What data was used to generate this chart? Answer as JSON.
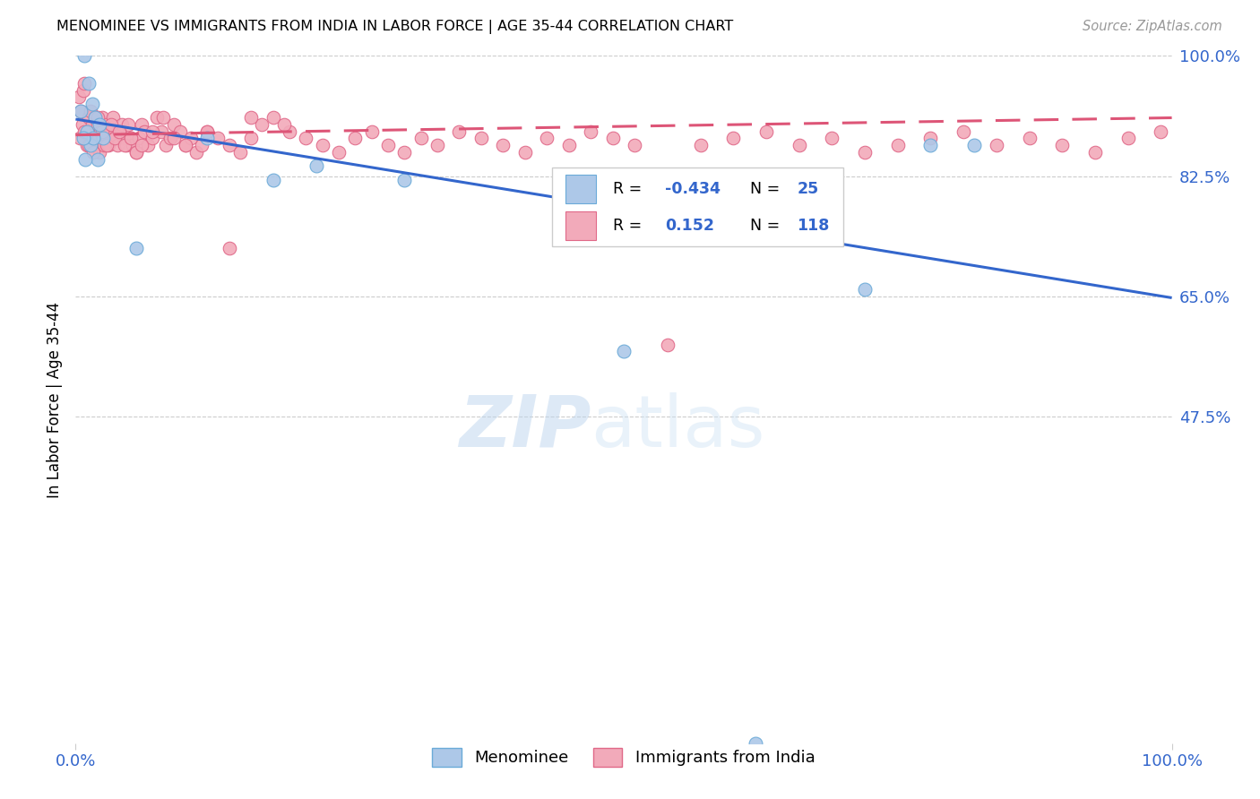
{
  "title": "MENOMINEE VS IMMIGRANTS FROM INDIA IN LABOR FORCE | AGE 35-44 CORRELATION CHART",
  "source": "Source: ZipAtlas.com",
  "ylabel": "In Labor Force | Age 35-44",
  "xlim": [
    0,
    1
  ],
  "ylim": [
    0,
    1
  ],
  "ytick_positions": [
    1.0,
    0.825,
    0.65,
    0.475
  ],
  "ytick_labels": [
    "100.0%",
    "82.5%",
    "65.0%",
    "47.5%"
  ],
  "xtick_positions": [
    0.0,
    1.0
  ],
  "xtick_labels": [
    "0.0%",
    "100.0%"
  ],
  "menominee_color": "#adc8e8",
  "india_color": "#f2aaba",
  "menominee_edge": "#6aaad8",
  "india_edge": "#e06888",
  "trend_blue": "#3366cc",
  "trend_pink": "#dd5577",
  "watermark_zip": "ZIP",
  "watermark_atlas": "atlas",
  "blue_line_x": [
    0.0,
    1.0
  ],
  "blue_line_y": [
    0.908,
    0.648
  ],
  "pink_line_x": [
    0.0,
    1.0
  ],
  "pink_line_y": [
    0.885,
    0.91
  ],
  "menominee_x": [
    0.008,
    0.012,
    0.015,
    0.018,
    0.01,
    0.022,
    0.025,
    0.014,
    0.016,
    0.02,
    0.005,
    0.007,
    0.009,
    0.055,
    0.12,
    0.18,
    0.22,
    0.62,
    0.68,
    0.72,
    0.78,
    0.82,
    0.5,
    0.62,
    0.3
  ],
  "menominee_y": [
    1.0,
    0.96,
    0.93,
    0.91,
    0.89,
    0.9,
    0.88,
    0.87,
    0.88,
    0.85,
    0.92,
    0.88,
    0.85,
    0.72,
    0.88,
    0.82,
    0.84,
    0.82,
    0.82,
    0.66,
    0.87,
    0.87,
    0.57,
    0.0,
    0.82
  ],
  "india_x": [
    0.003,
    0.005,
    0.006,
    0.007,
    0.008,
    0.009,
    0.01,
    0.011,
    0.012,
    0.013,
    0.014,
    0.015,
    0.016,
    0.017,
    0.018,
    0.019,
    0.02,
    0.021,
    0.022,
    0.023,
    0.024,
    0.025,
    0.026,
    0.027,
    0.028,
    0.029,
    0.03,
    0.032,
    0.034,
    0.036,
    0.038,
    0.04,
    0.042,
    0.044,
    0.046,
    0.048,
    0.05,
    0.052,
    0.055,
    0.058,
    0.06,
    0.063,
    0.066,
    0.07,
    0.074,
    0.078,
    0.082,
    0.086,
    0.09,
    0.095,
    0.1,
    0.105,
    0.11,
    0.115,
    0.12,
    0.13,
    0.14,
    0.15,
    0.16,
    0.17,
    0.18,
    0.195,
    0.21,
    0.225,
    0.24,
    0.255,
    0.27,
    0.285,
    0.3,
    0.315,
    0.33,
    0.35,
    0.37,
    0.39,
    0.41,
    0.43,
    0.45,
    0.47,
    0.49,
    0.51,
    0.54,
    0.57,
    0.6,
    0.63,
    0.66,
    0.69,
    0.72,
    0.75,
    0.78,
    0.81,
    0.84,
    0.87,
    0.9,
    0.93,
    0.96,
    0.99,
    0.004,
    0.008,
    0.012,
    0.016,
    0.02,
    0.024,
    0.028,
    0.032,
    0.036,
    0.04,
    0.045,
    0.05,
    0.055,
    0.06,
    0.07,
    0.08,
    0.09,
    0.1,
    0.12,
    0.14,
    0.16,
    0.19
  ],
  "india_y": [
    0.94,
    0.92,
    0.9,
    0.95,
    0.96,
    0.88,
    0.87,
    0.89,
    0.91,
    0.88,
    0.92,
    0.9,
    0.88,
    0.87,
    0.91,
    0.89,
    0.9,
    0.88,
    0.86,
    0.89,
    0.91,
    0.88,
    0.87,
    0.89,
    0.9,
    0.88,
    0.87,
    0.89,
    0.91,
    0.88,
    0.87,
    0.89,
    0.9,
    0.88,
    0.87,
    0.9,
    0.88,
    0.87,
    0.86,
    0.88,
    0.9,
    0.89,
    0.87,
    0.88,
    0.91,
    0.89,
    0.87,
    0.88,
    0.9,
    0.89,
    0.87,
    0.88,
    0.86,
    0.87,
    0.89,
    0.88,
    0.87,
    0.86,
    0.88,
    0.9,
    0.91,
    0.89,
    0.88,
    0.87,
    0.86,
    0.88,
    0.89,
    0.87,
    0.86,
    0.88,
    0.87,
    0.89,
    0.88,
    0.87,
    0.86,
    0.88,
    0.87,
    0.89,
    0.88,
    0.87,
    0.58,
    0.87,
    0.88,
    0.89,
    0.87,
    0.88,
    0.86,
    0.87,
    0.88,
    0.89,
    0.87,
    0.88,
    0.87,
    0.86,
    0.88,
    0.89,
    0.88,
    0.89,
    0.87,
    0.86,
    0.91,
    0.89,
    0.87,
    0.9,
    0.88,
    0.89,
    0.87,
    0.88,
    0.86,
    0.87,
    0.89,
    0.91,
    0.88,
    0.87,
    0.89,
    0.72,
    0.91,
    0.9
  ]
}
